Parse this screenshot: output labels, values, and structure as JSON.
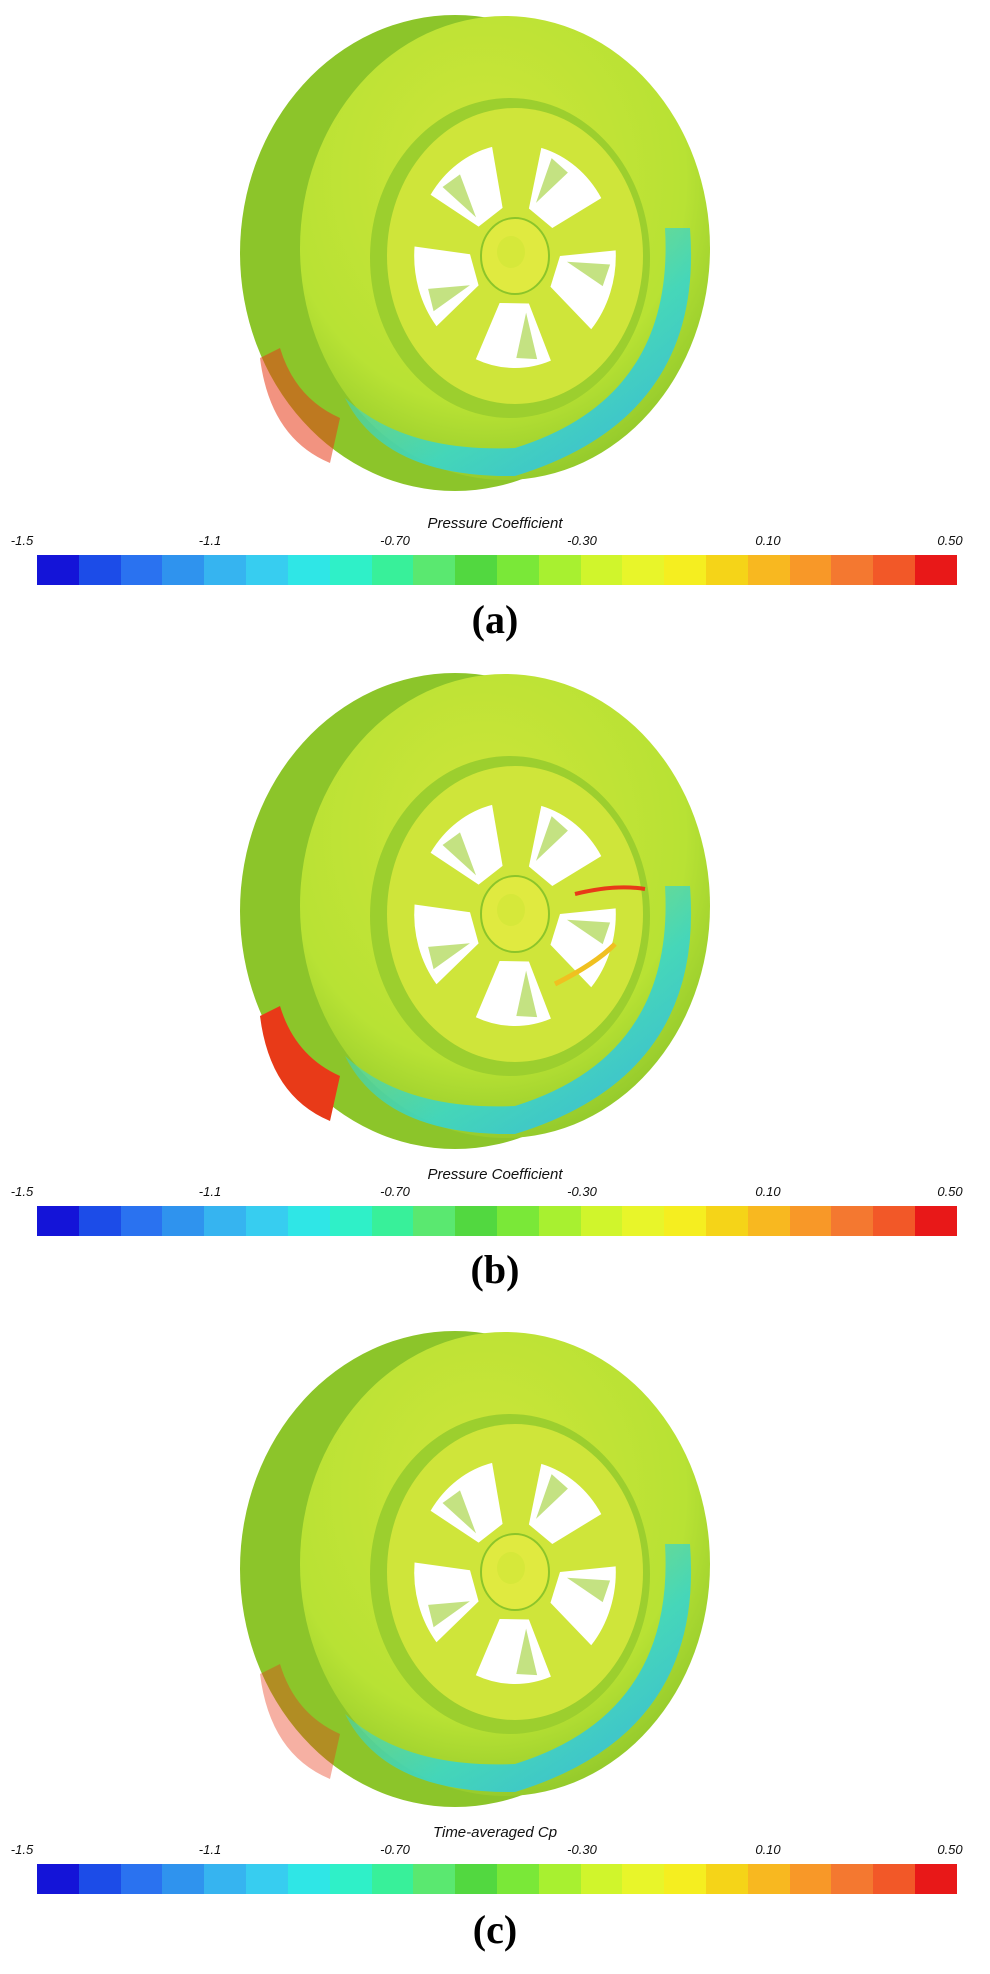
{
  "panels": [
    {
      "label": "(a)",
      "colorbar_title": "Pressure Coefficient",
      "ticks": [
        "-1.5",
        "-1.1",
        "-0.70",
        "-0.30",
        "0.10",
        "0.50"
      ]
    },
    {
      "label": "(b)",
      "colorbar_title": "Pressure Coefficient",
      "ticks": [
        "-1.5",
        "-1.1",
        "-0.70",
        "-0.30",
        "0.10",
        "0.50"
      ]
    },
    {
      "label": "(c)",
      "colorbar_title": "Time-averaged Cp",
      "ticks": [
        "-1.5",
        "-1.1",
        "-0.70",
        "-0.30",
        "0.10",
        "0.50"
      ]
    }
  ],
  "colorbar": {
    "range": [
      -1.5,
      0.5
    ],
    "colors": [
      "#1414d8",
      "#1c4ce8",
      "#2a72f0",
      "#2f93ee",
      "#36b4f0",
      "#37cdf0",
      "#2fe6e6",
      "#2ff0c8",
      "#38f09a",
      "#5ae870",
      "#52d840",
      "#7ae838",
      "#a8f030",
      "#d0f52c",
      "#e8f52a",
      "#f5ee20",
      "#f5d418",
      "#f8b820",
      "#f89828",
      "#f47830",
      "#f25828",
      "#e81818"
    ]
  },
  "contour_colors": {
    "body": "#b8e234",
    "body_dark": "#8cc52a",
    "rim": "#cfe53a",
    "spokes": "#d6e83a",
    "hub": "#e0ea40",
    "holes": "#ffffff",
    "shadow_inner": "#9ccf2e",
    "low_cp": "#3ad6c8",
    "low_cp_strong": "#2fb4ee",
    "high_cp": "#e83a18",
    "mid_high": "#f0c020"
  }
}
